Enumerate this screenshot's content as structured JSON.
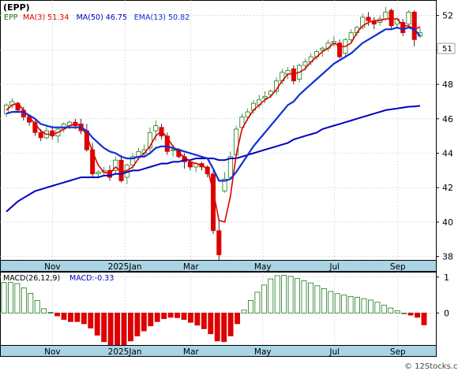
{
  "chart_data": [
    {
      "type": "candlestick",
      "title": "(EPP)",
      "legend": {
        "symbol": "EPP",
        "items": [
          {
            "label": "MA(3)",
            "value": "51.34",
            "color": "#e00000"
          },
          {
            "label": "MA(50)",
            "value": "46.75",
            "color": "#0000c0"
          },
          {
            "label": "EMA(13)",
            "value": "50.82",
            "color": "#1030d0"
          }
        ]
      },
      "ylim": [
        37.8,
        52.9
      ],
      "y_ticks": [
        38,
        40,
        42,
        44,
        46,
        48,
        50,
        52
      ],
      "x_labels": [
        "Nov",
        "2025Jan",
        "Mar",
        "May",
        "Jul",
        "Sep"
      ],
      "last_price_label": "51",
      "grid": true,
      "colors": {
        "up": "#1a7a1a",
        "down": "#dd0000",
        "axis_band": "#a9d4e4"
      },
      "candles": [
        [
          46.3,
          46.9,
          46.1,
          46.8
        ],
        [
          46.8,
          47.2,
          46.6,
          47.0
        ],
        [
          46.9,
          47.0,
          46.4,
          46.5
        ],
        [
          46.5,
          46.7,
          45.9,
          46.1
        ],
        [
          46.1,
          46.2,
          45.6,
          45.8
        ],
        [
          45.8,
          46.0,
          45.0,
          45.2
        ],
        [
          45.2,
          45.4,
          44.7,
          44.9
        ],
        [
          44.9,
          45.6,
          44.8,
          45.3
        ],
        [
          45.3,
          45.6,
          44.8,
          45.0
        ],
        [
          45.0,
          45.5,
          44.6,
          45.4
        ],
        [
          45.4,
          45.8,
          45.2,
          45.7
        ],
        [
          45.6,
          45.9,
          45.4,
          45.8
        ],
        [
          45.8,
          46.0,
          45.4,
          45.6
        ],
        [
          45.7,
          46.0,
          45.1,
          45.3
        ],
        [
          45.3,
          45.7,
          44.1,
          44.2
        ],
        [
          44.2,
          44.6,
          42.6,
          42.8
        ],
        [
          42.8,
          43.0,
          42.6,
          42.9
        ],
        [
          42.9,
          43.2,
          42.7,
          43.0
        ],
        [
          43.0,
          43.3,
          42.4,
          42.6
        ],
        [
          43.0,
          43.8,
          42.8,
          43.6
        ],
        [
          43.6,
          43.9,
          42.3,
          42.4
        ],
        [
          42.6,
          43.4,
          42.2,
          43.3
        ],
        [
          43.3,
          44.0,
          43.1,
          43.8
        ],
        [
          43.8,
          44.3,
          43.6,
          44.1
        ],
        [
          44.0,
          44.5,
          43.8,
          44.2
        ],
        [
          44.3,
          45.5,
          44.1,
          45.2
        ],
        [
          45.3,
          45.9,
          44.7,
          45.6
        ],
        [
          45.5,
          45.7,
          44.8,
          45.0
        ],
        [
          45.0,
          45.2,
          43.9,
          44.1
        ],
        [
          44.2,
          44.5,
          43.8,
          44.2
        ],
        [
          44.2,
          44.3,
          43.7,
          43.8
        ],
        [
          43.8,
          44.0,
          43.1,
          43.5
        ],
        [
          43.5,
          43.6,
          43.0,
          43.2
        ],
        [
          43.2,
          43.5,
          42.9,
          43.4
        ],
        [
          43.4,
          43.5,
          43.0,
          43.2
        ],
        [
          43.2,
          43.3,
          42.6,
          42.8
        ],
        [
          42.8,
          43.0,
          39.3,
          39.5
        ],
        [
          39.5,
          40.1,
          37.8,
          38.1
        ],
        [
          41.8,
          42.9,
          41.7,
          42.5
        ],
        [
          42.6,
          44.1,
          42.5,
          43.8
        ],
        [
          43.9,
          45.6,
          43.8,
          45.4
        ],
        [
          45.5,
          46.3,
          45.3,
          46.1
        ],
        [
          46.1,
          46.6,
          45.9,
          46.4
        ],
        [
          46.5,
          47.1,
          46.3,
          46.9
        ],
        [
          46.8,
          47.4,
          46.6,
          47.1
        ],
        [
          47.2,
          47.6,
          46.9,
          47.3
        ],
        [
          47.4,
          47.7,
          47.2,
          47.6
        ],
        [
          47.6,
          48.4,
          47.4,
          48.2
        ],
        [
          48.2,
          48.9,
          48.0,
          48.7
        ],
        [
          48.6,
          49.0,
          48.3,
          48.8
        ],
        [
          48.9,
          49.1,
          48.0,
          48.2
        ],
        [
          48.3,
          49.2,
          48.1,
          49.1
        ],
        [
          49.1,
          49.5,
          48.8,
          49.3
        ],
        [
          49.3,
          49.8,
          49.1,
          49.6
        ],
        [
          49.6,
          50.0,
          49.4,
          49.9
        ],
        [
          50.0,
          50.2,
          49.6,
          50.1
        ],
        [
          50.1,
          50.6,
          49.9,
          50.4
        ],
        [
          50.4,
          50.8,
          50.2,
          50.5
        ],
        [
          50.4,
          50.6,
          49.5,
          49.6
        ],
        [
          49.8,
          50.7,
          49.6,
          50.6
        ],
        [
          50.6,
          51.2,
          50.4,
          51.0
        ],
        [
          51.0,
          51.4,
          50.8,
          51.3
        ],
        [
          51.3,
          52.1,
          51.2,
          51.9
        ],
        [
          51.9,
          52.2,
          51.4,
          51.7
        ],
        [
          51.7,
          51.9,
          51.2,
          51.5
        ],
        [
          51.6,
          52.0,
          51.4,
          51.8
        ],
        [
          51.8,
          52.5,
          51.7,
          52.2
        ],
        [
          52.3,
          52.4,
          51.2,
          51.4
        ],
        [
          51.5,
          51.9,
          51.3,
          51.8
        ],
        [
          51.6,
          51.8,
          50.8,
          51.0
        ],
        [
          51.5,
          52.3,
          51.3,
          52.2
        ],
        [
          52.2,
          52.3,
          50.2,
          50.6
        ],
        [
          50.8,
          51.3,
          50.7,
          51.0
        ]
      ],
      "ma3": [
        46.5,
        46.8,
        46.9,
        46.5,
        46.1,
        45.7,
        45.3,
        45.1,
        45.1,
        45.2,
        45.4,
        45.6,
        45.7,
        45.6,
        45.0,
        44.1,
        43.3,
        42.9,
        42.8,
        43.2,
        42.9,
        43.0,
        43.2,
        43.7,
        44.0,
        44.4,
        45.0,
        45.3,
        44.9,
        44.4,
        44.0,
        43.8,
        43.5,
        43.4,
        43.3,
        43.1,
        41.8,
        40.1,
        40.0,
        41.5,
        43.9,
        45.4,
        46.0,
        46.5,
        46.8,
        47.1,
        47.3,
        47.7,
        48.2,
        48.6,
        48.6,
        48.7,
        48.9,
        49.3,
        49.6,
        49.9,
        50.1,
        50.4,
        50.2,
        50.2,
        50.4,
        51.0,
        51.4,
        51.6,
        51.7,
        51.7,
        51.8,
        51.8,
        51.8,
        51.4,
        51.4,
        51.2,
        51.34
      ],
      "ema13": [
        46.3,
        46.4,
        46.4,
        46.4,
        46.2,
        46.0,
        45.7,
        45.6,
        45.5,
        45.5,
        45.5,
        45.5,
        45.5,
        45.5,
        45.3,
        44.9,
        44.6,
        44.3,
        44.1,
        44.0,
        43.8,
        43.7,
        43.7,
        43.8,
        43.8,
        44.0,
        44.3,
        44.4,
        44.4,
        44.3,
        44.2,
        44.1,
        44.0,
        43.9,
        43.8,
        43.7,
        43.1,
        42.4,
        42.4,
        42.5,
        42.9,
        43.4,
        43.9,
        44.4,
        44.8,
        45.2,
        45.6,
        46.0,
        46.4,
        46.8,
        47.0,
        47.4,
        47.7,
        48.0,
        48.3,
        48.6,
        48.9,
        49.2,
        49.4,
        49.6,
        49.8,
        50.1,
        50.4,
        50.6,
        50.8,
        51.0,
        51.2,
        51.2,
        51.3,
        51.2,
        51.3,
        51.2,
        50.82
      ],
      "ma50": [
        40.6,
        40.9,
        41.2,
        41.4,
        41.6,
        41.8,
        41.9,
        42.0,
        42.1,
        42.2,
        42.3,
        42.4,
        42.5,
        42.6,
        42.6,
        42.6,
        42.6,
        42.7,
        42.7,
        42.8,
        42.8,
        42.9,
        43.0,
        43.0,
        43.1,
        43.2,
        43.3,
        43.4,
        43.4,
        43.5,
        43.5,
        43.6,
        43.6,
        43.7,
        43.7,
        43.7,
        43.7,
        43.6,
        43.6,
        43.7,
        43.7,
        43.8,
        43.9,
        44.0,
        44.1,
        44.2,
        44.3,
        44.4,
        44.5,
        44.6,
        44.8,
        44.9,
        45.0,
        45.1,
        45.2,
        45.4,
        45.5,
        45.6,
        45.7,
        45.8,
        45.9,
        46.0,
        46.1,
        46.2,
        46.3,
        46.4,
        46.5,
        46.55,
        46.6,
        46.65,
        46.7,
        46.72,
        46.75
      ]
    },
    {
      "type": "bar",
      "title": "MACD(26,12,9)",
      "legend": {
        "label": "MACD:",
        "value": "-0.33",
        "color": "#0000c0"
      },
      "ylim": [
        -1.2,
        1.15
      ],
      "y_ticks": [
        1,
        0
      ],
      "x_labels": [
        "Nov",
        "2025Jan",
        "Mar",
        "May",
        "Jul",
        "Sep"
      ],
      "values": [
        0.85,
        0.85,
        0.82,
        0.7,
        0.55,
        0.35,
        0.12,
        0.02,
        -0.08,
        -0.18,
        -0.24,
        -0.24,
        -0.3,
        -0.42,
        -0.62,
        -0.8,
        -0.92,
        -0.94,
        -0.9,
        -0.78,
        -0.64,
        -0.5,
        -0.36,
        -0.24,
        -0.16,
        -0.12,
        -0.13,
        -0.18,
        -0.26,
        -0.34,
        -0.44,
        -0.58,
        -0.78,
        -0.8,
        -0.64,
        -0.3,
        0.08,
        0.35,
        0.58,
        0.78,
        0.95,
        1.04,
        1.05,
        1.02,
        0.96,
        0.9,
        0.84,
        0.76,
        0.68,
        0.6,
        0.54,
        0.5,
        0.46,
        0.44,
        0.4,
        0.36,
        0.3,
        0.22,
        0.14,
        0.06,
        0.0,
        -0.06,
        -0.12,
        -0.33
      ]
    }
  ],
  "footer": {
    "credit": "© 12Stocks.com"
  }
}
